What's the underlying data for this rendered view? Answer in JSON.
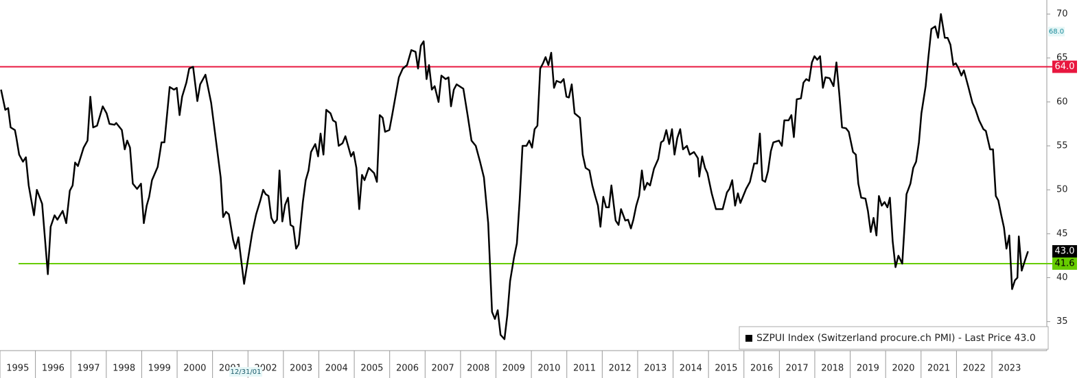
{
  "chart_data": {
    "type": "line",
    "xlim": [
      1995.0,
      2024.55
    ],
    "ylim": [
      31.7,
      71.6
    ],
    "xticks": [
      1995,
      1996,
      1997,
      1998,
      1999,
      2000,
      2001,
      2002,
      2003,
      2004,
      2005,
      2006,
      2007,
      2008,
      2009,
      2010,
      2011,
      2012,
      2013,
      2014,
      2015,
      2016,
      2017,
      2018,
      2019,
      2020,
      2021,
      2022,
      2023
    ],
    "yticks": [
      35,
      40,
      45,
      50,
      55,
      60,
      65,
      70
    ],
    "grid": false,
    "x": [
      1995.03,
      1995.15,
      1995.23,
      1995.3,
      1995.42,
      1995.46,
      1995.54,
      1995.65,
      1995.73,
      1995.81,
      1995.96,
      1996.04,
      1996.19,
      1996.35,
      1996.43,
      1996.54,
      1996.62,
      1996.77,
      1996.87,
      1996.97,
      1997.05,
      1997.12,
      1997.2,
      1997.36,
      1997.47,
      1997.55,
      1997.63,
      1997.74,
      1997.9,
      1998.01,
      1998.09,
      1998.23,
      1998.28,
      1998.44,
      1998.52,
      1998.59,
      1998.67,
      1998.75,
      1998.87,
      1998.98,
      1999.06,
      1999.14,
      1999.21,
      1999.29,
      1999.45,
      1999.56,
      1999.64,
      1999.79,
      1999.91,
      1999.99,
      2000.07,
      2000.14,
      2000.26,
      2000.34,
      2000.45,
      2000.57,
      2000.65,
      2000.8,
      2000.96,
      2001.11,
      2001.23,
      2001.3,
      2001.38,
      2001.46,
      2001.58,
      2001.65,
      2001.73,
      2001.89,
      2002.0,
      2002.12,
      2002.23,
      2002.35,
      2002.43,
      2002.5,
      2002.58,
      2002.66,
      2002.74,
      2002.82,
      2002.89,
      2002.97,
      2003.05,
      2003.13,
      2003.2,
      2003.28,
      2003.36,
      2003.43,
      2003.55,
      2003.63,
      2003.71,
      2003.78,
      2003.9,
      2003.98,
      2004.05,
      2004.13,
      2004.21,
      2004.33,
      2004.4,
      2004.48,
      2004.56,
      2004.67,
      2004.75,
      2004.91,
      2004.98,
      2005.06,
      2005.14,
      2005.22,
      2005.29,
      2005.41,
      2005.56,
      2005.64,
      2005.72,
      2005.8,
      2005.87,
      2005.99,
      2006.07,
      2006.18,
      2006.26,
      2006.37,
      2006.49,
      2006.61,
      2006.73,
      2006.8,
      2006.88,
      2006.96,
      2007.04,
      2007.11,
      2007.19,
      2007.27,
      2007.38,
      2007.46,
      2007.58,
      2007.66,
      2007.73,
      2007.81,
      2007.89,
      2008.08,
      2008.2,
      2008.31,
      2008.43,
      2008.55,
      2008.66,
      2008.78,
      2008.89,
      2008.97,
      2009.05,
      2009.13,
      2009.24,
      2009.32,
      2009.4,
      2009.51,
      2009.59,
      2009.67,
      2009.75,
      2009.86,
      2009.94,
      2010.02,
      2010.09,
      2010.17,
      2010.25,
      2010.33,
      2010.4,
      2010.48,
      2010.56,
      2010.64,
      2010.71,
      2010.83,
      2010.91,
      2010.99,
      2011.06,
      2011.14,
      2011.22,
      2011.37,
      2011.45,
      2011.53,
      2011.64,
      2011.72,
      2011.8,
      2011.88,
      2011.95,
      2012.03,
      2012.11,
      2012.19,
      2012.26,
      2012.38,
      2012.46,
      2012.53,
      2012.65,
      2012.73,
      2012.81,
      2012.88,
      2012.96,
      2013.04,
      2013.12,
      2013.19,
      2013.27,
      2013.35,
      2013.46,
      2013.58,
      2013.66,
      2013.73,
      2013.81,
      2013.89,
      2013.97,
      2014.04,
      2014.12,
      2014.2,
      2014.28,
      2014.39,
      2014.47,
      2014.59,
      2014.7,
      2014.74,
      2014.82,
      2014.9,
      2014.97,
      2015.09,
      2015.21,
      2015.4,
      2015.52,
      2015.59,
      2015.67,
      2015.75,
      2015.83,
      2015.9,
      2016.06,
      2016.17,
      2016.29,
      2016.37,
      2016.45,
      2016.52,
      2016.6,
      2016.68,
      2016.76,
      2016.83,
      2016.99,
      2017.07,
      2017.14,
      2017.26,
      2017.34,
      2017.41,
      2017.49,
      2017.61,
      2017.68,
      2017.76,
      2017.84,
      2017.92,
      2017.99,
      2018.07,
      2018.15,
      2018.23,
      2018.3,
      2018.42,
      2018.53,
      2018.61,
      2018.69,
      2018.77,
      2018.88,
      2018.96,
      2019.08,
      2019.16,
      2019.23,
      2019.31,
      2019.43,
      2019.5,
      2019.58,
      2019.66,
      2019.74,
      2019.81,
      2019.89,
      2019.97,
      2020.05,
      2020.12,
      2020.2,
      2020.28,
      2020.36,
      2020.47,
      2020.59,
      2020.7,
      2020.78,
      2020.86,
      2020.94,
      2021.01,
      2021.13,
      2021.21,
      2021.29,
      2021.4,
      2021.48,
      2021.56,
      2021.67,
      2021.75,
      2021.83,
      2021.91,
      2021.98,
      2022.06,
      2022.14,
      2022.21,
      2022.33,
      2022.45,
      2022.53,
      2022.64,
      2022.76,
      2022.83,
      2022.95,
      2023.03,
      2023.11,
      2023.18,
      2023.26,
      2023.34,
      2023.41,
      2023.49,
      2023.57,
      2023.65,
      2023.72,
      2023.76,
      2023.84,
      2023.96,
      2024.02
    ],
    "series": [
      {
        "name": "SZPUI Index (Switzerland procure.ch PMI) - Last Price 43.0",
        "color": "#000000",
        "values": [
          61.4,
          59.1,
          59.3,
          57.1,
          56.8,
          56.0,
          54.0,
          53.2,
          53.7,
          50.5,
          47.1,
          50.0,
          48.4,
          40.4,
          45.8,
          47.1,
          46.6,
          47.6,
          46.2,
          49.9,
          50.5,
          53.1,
          52.7,
          54.8,
          55.6,
          60.6,
          57.1,
          57.3,
          59.5,
          58.7,
          57.5,
          57.4,
          57.6,
          56.8,
          54.6,
          55.6,
          54.8,
          50.7,
          50.1,
          50.7,
          46.2,
          48.2,
          49.2,
          51.1,
          52.6,
          55.4,
          55.4,
          61.7,
          61.4,
          61.6,
          58.5,
          60.6,
          62.2,
          63.8,
          64.0,
          60.1,
          62.0,
          63.1,
          59.9,
          55.2,
          51.4,
          46.9,
          47.5,
          47.2,
          44.3,
          43.3,
          44.6,
          39.3,
          42.1,
          45.1,
          47.2,
          48.8,
          50.0,
          49.5,
          49.3,
          46.8,
          46.2,
          46.6,
          52.2,
          46.4,
          48.3,
          49.1,
          46.0,
          45.8,
          43.3,
          43.8,
          48.6,
          51.1,
          52.2,
          54.3,
          55.2,
          53.8,
          56.4,
          54.0,
          59.1,
          58.7,
          57.9,
          57.7,
          55.0,
          55.3,
          56.1,
          53.8,
          54.3,
          52.5,
          47.8,
          51.7,
          51.1,
          52.5,
          51.9,
          50.9,
          58.5,
          58.2,
          56.6,
          56.8,
          58.5,
          61.0,
          62.8,
          63.8,
          64.2,
          65.9,
          65.7,
          63.8,
          66.4,
          66.9,
          62.6,
          64.2,
          61.4,
          61.8,
          60.0,
          63.0,
          62.6,
          62.8,
          59.5,
          61.4,
          62.0,
          61.5,
          58.5,
          55.6,
          55.0,
          53.2,
          51.4,
          46.2,
          36.1,
          35.3,
          36.3,
          33.5,
          33.0,
          35.7,
          39.6,
          42.3,
          43.9,
          48.9,
          55.0,
          55.0,
          55.6,
          54.8,
          56.9,
          57.3,
          63.8,
          64.4,
          65.1,
          64.2,
          65.6,
          61.6,
          62.4,
          62.2,
          62.6,
          60.6,
          60.5,
          62.0,
          58.7,
          58.2,
          54.0,
          52.5,
          52.2,
          50.5,
          49.3,
          48.2,
          45.8,
          49.2,
          48.0,
          48.0,
          50.5,
          46.5,
          46.0,
          47.8,
          46.5,
          46.6,
          45.6,
          46.6,
          48.2,
          49.3,
          52.2,
          50.0,
          50.8,
          50.5,
          52.4,
          53.5,
          55.4,
          55.6,
          56.8,
          55.2,
          56.9,
          54.0,
          55.9,
          56.9,
          54.6,
          55.0,
          54.0,
          54.3,
          53.6,
          51.5,
          53.8,
          52.5,
          51.9,
          49.6,
          47.8,
          47.8,
          49.7,
          50.1,
          51.1,
          48.2,
          49.6,
          48.5,
          50.1,
          50.9,
          53.0,
          53.0,
          56.4,
          51.1,
          50.9,
          52.1,
          54.4,
          55.4,
          55.6,
          55.0,
          57.9,
          57.9,
          58.5,
          56.0,
          60.3,
          60.4,
          62.2,
          62.6,
          62.4,
          64.5,
          65.2,
          64.8,
          65.2,
          61.6,
          62.8,
          62.7,
          61.8,
          64.5,
          61.0,
          57.1,
          57.0,
          56.6,
          54.3,
          54.0,
          50.7,
          49.1,
          49.0,
          47.6,
          45.2,
          46.8,
          44.8,
          49.3,
          48.2,
          48.6,
          48.0,
          49.1,
          44.1,
          41.2,
          42.5,
          41.6,
          49.5,
          50.7,
          52.5,
          53.2,
          55.4,
          58.7,
          61.8,
          65.2,
          68.3,
          68.6,
          67.3,
          70.0,
          67.3,
          67.3,
          66.5,
          64.2,
          64.4,
          63.8,
          63.0,
          63.6,
          61.8,
          59.9,
          59.2,
          57.9,
          56.9,
          56.7,
          54.6,
          54.6,
          49.3,
          48.8,
          47.2,
          45.7,
          43.3,
          44.8,
          38.7,
          39.7,
          40.0,
          44.7,
          40.8,
          42.3,
          43.0
        ]
      }
    ],
    "reference_lines": [
      {
        "value": 64.0,
        "label": "64.0",
        "color": "#e8173f"
      },
      {
        "value": 41.6,
        "label": "41.6",
        "color": "#66cc00"
      }
    ],
    "last_price": {
      "value": 43.0,
      "label": "43.0"
    },
    "marker_label": {
      "value": 68.0,
      "label": "68.0"
    },
    "annotation": "12/31/01"
  }
}
